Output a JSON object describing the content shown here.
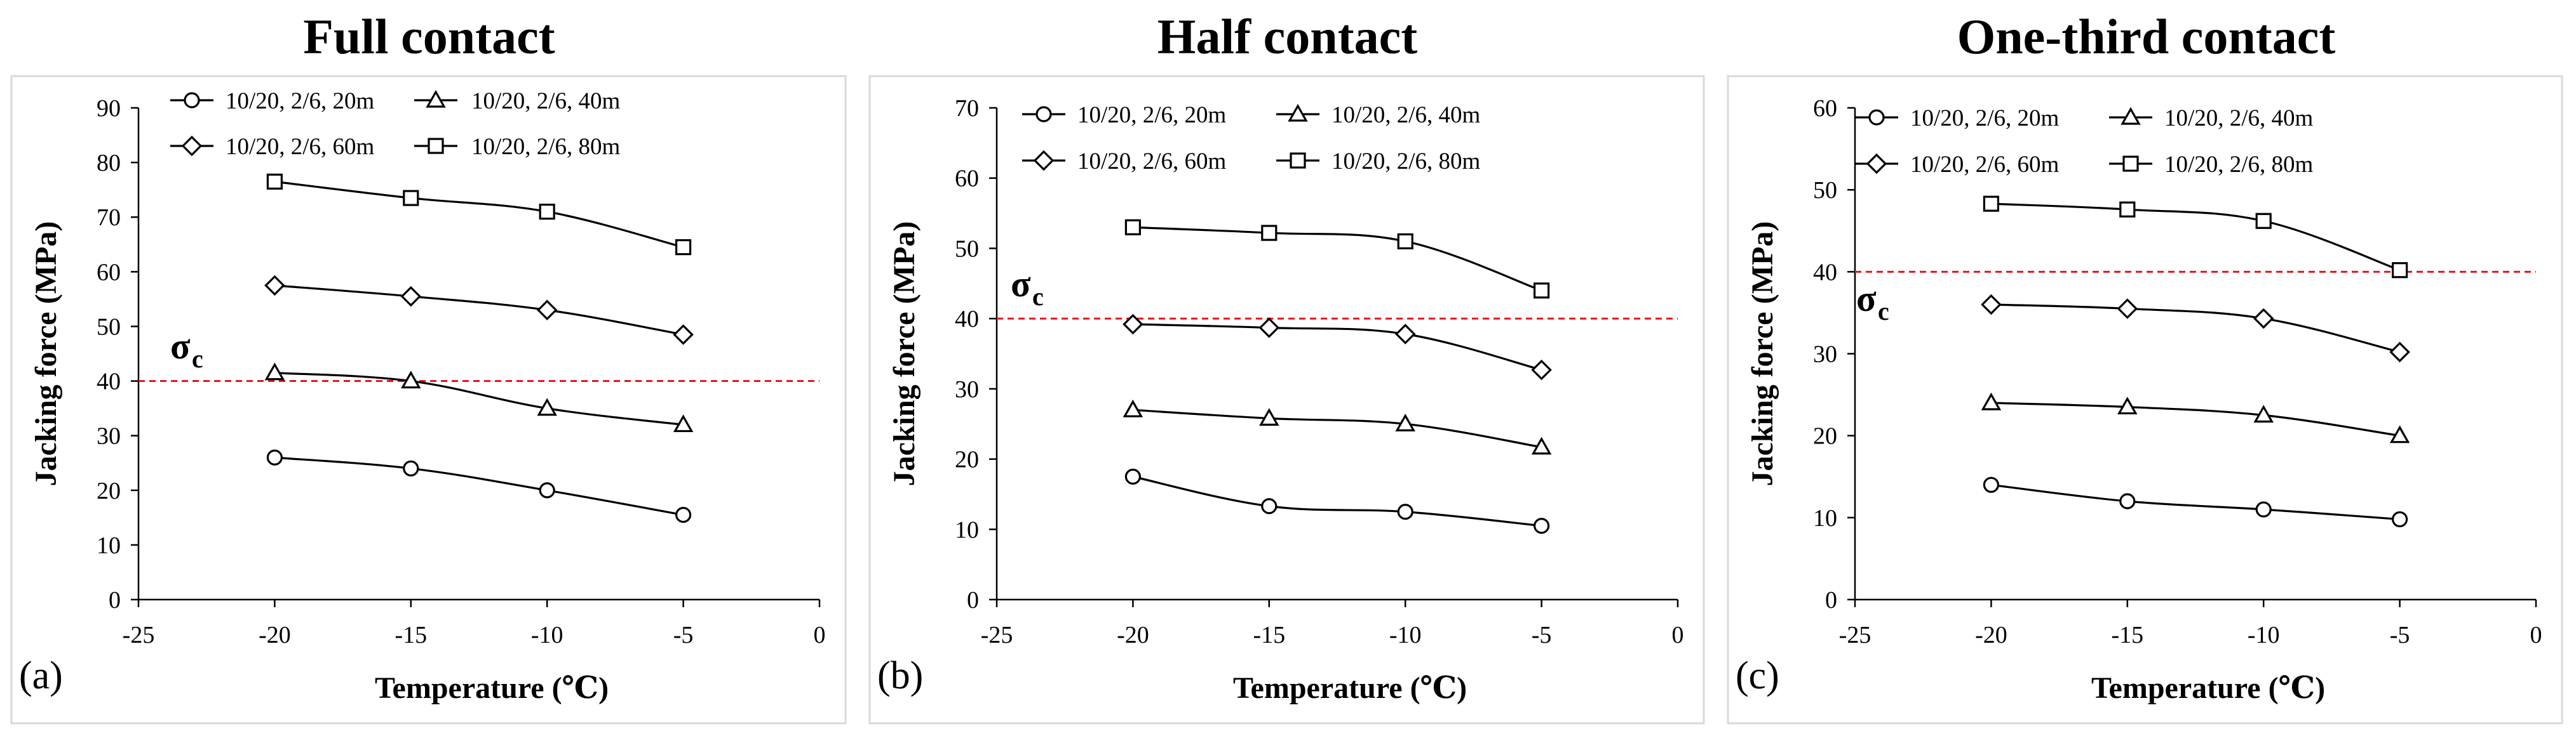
{
  "figure": {
    "titles": [
      "Full contact",
      "Half contact",
      "One-third contact"
    ]
  },
  "chart_data": [
    {
      "type": "line",
      "title": "Full contact",
      "panel_label": "(a)",
      "xlabel": "Temperature (℃)",
      "ylabel": "Jacking force (MPa)",
      "xlim": [
        -25,
        0
      ],
      "ylim": [
        0,
        90
      ],
      "xticks": [
        -25,
        -20,
        -15,
        -10,
        -5,
        0
      ],
      "yticks": [
        0,
        10,
        20,
        30,
        40,
        50,
        60,
        70,
        80,
        90
      ],
      "x": [
        -20,
        -15,
        -10,
        -5
      ],
      "series": [
        {
          "name": "10/20, 2/6, 20m",
          "marker": "circle",
          "values": [
            26.0,
            24.0,
            20.0,
            15.5
          ]
        },
        {
          "name": "10/20, 2/6, 40m",
          "marker": "triangle",
          "values": [
            41.5,
            40.0,
            35.0,
            32.0
          ]
        },
        {
          "name": "10/20, 2/6, 60m",
          "marker": "diamond",
          "values": [
            57.5,
            55.5,
            53.0,
            48.5
          ]
        },
        {
          "name": "10/20, 2/6, 80m",
          "marker": "square",
          "values": [
            76.5,
            73.5,
            71.0,
            64.5
          ]
        }
      ],
      "reference_line": {
        "value": 40,
        "color": "#e8141c",
        "label_main": "σ",
        "label_sub": "c"
      },
      "legend_position": "top"
    },
    {
      "type": "line",
      "title": "Half contact",
      "panel_label": "(b)",
      "xlabel": "Temperature (℃)",
      "ylabel": "Jacking force (MPa)",
      "xlim": [
        -25,
        0
      ],
      "ylim": [
        0,
        70
      ],
      "xticks": [
        -25,
        -20,
        -15,
        -10,
        -5,
        0
      ],
      "yticks": [
        0,
        10,
        20,
        30,
        40,
        50,
        60,
        70
      ],
      "x": [
        -20,
        -15,
        -10,
        -5
      ],
      "series": [
        {
          "name": "10/20, 2/6, 20m",
          "marker": "circle",
          "values": [
            17.5,
            13.3,
            12.5,
            10.5
          ]
        },
        {
          "name": "10/20, 2/6, 40m",
          "marker": "triangle",
          "values": [
            27.0,
            25.8,
            25.0,
            21.7
          ]
        },
        {
          "name": "10/20, 2/6, 60m",
          "marker": "diamond",
          "values": [
            39.2,
            38.7,
            37.8,
            32.7
          ]
        },
        {
          "name": "10/20, 2/6, 80m",
          "marker": "square",
          "values": [
            53.0,
            52.2,
            51.0,
            44.0
          ]
        }
      ],
      "reference_line": {
        "value": 40,
        "color": "#e8141c",
        "label_main": "σ",
        "label_sub": "c"
      },
      "legend_position": "top"
    },
    {
      "type": "line",
      "title": "One-third contact",
      "panel_label": "(c)",
      "xlabel": "Temperature (℃)",
      "ylabel": "Jacking force (MPa)",
      "xlim": [
        -25,
        0
      ],
      "ylim": [
        0,
        60
      ],
      "xticks": [
        -25,
        -20,
        -15,
        -10,
        -5,
        0
      ],
      "yticks": [
        0,
        10,
        20,
        30,
        40,
        50,
        60
      ],
      "x": [
        -20,
        -15,
        -10,
        -5
      ],
      "series": [
        {
          "name": "10/20, 2/6, 20m",
          "marker": "circle",
          "values": [
            14.0,
            12.0,
            11.0,
            9.8
          ]
        },
        {
          "name": "10/20, 2/6, 40m",
          "marker": "triangle",
          "values": [
            24.0,
            23.5,
            22.5,
            20.0
          ]
        },
        {
          "name": "10/20, 2/6, 60m",
          "marker": "diamond",
          "values": [
            36.0,
            35.5,
            34.3,
            30.2
          ]
        },
        {
          "name": "10/20, 2/6, 80m",
          "marker": "square",
          "values": [
            48.3,
            47.6,
            46.2,
            40.2
          ]
        }
      ],
      "reference_line": {
        "value": 40,
        "color": "#e8141c",
        "label_main": "σ",
        "label_sub": "c"
      },
      "legend_position": "top"
    }
  ]
}
